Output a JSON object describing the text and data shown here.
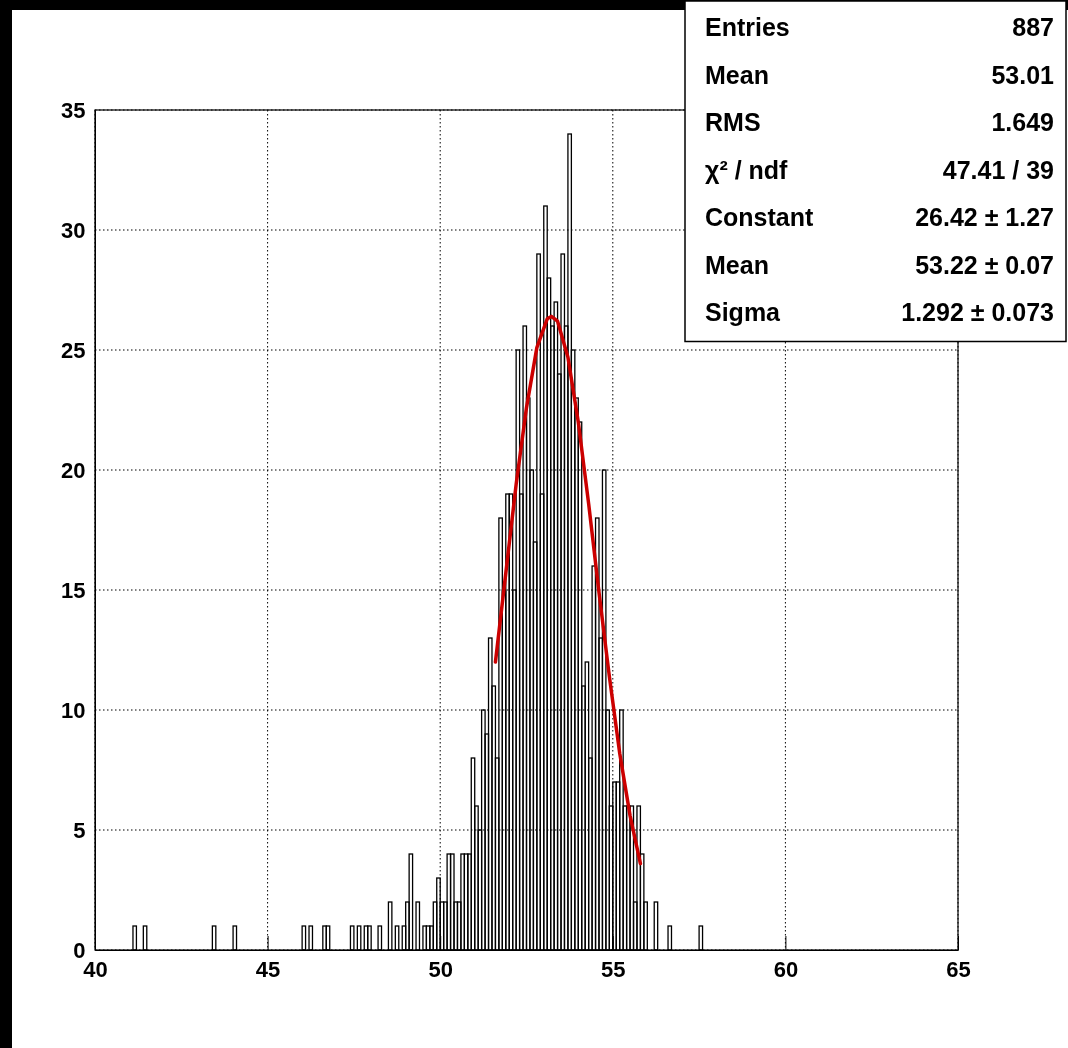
{
  "chart_data": {
    "type": "histogram",
    "xlim": [
      40,
      65
    ],
    "xticks": [
      40,
      45,
      50,
      55,
      60,
      65
    ],
    "ylim": [
      0,
      35
    ],
    "yticks": [
      0,
      5,
      10,
      15,
      20,
      25,
      30,
      35
    ],
    "grid": true,
    "annotations": [
      "Entries 887",
      "Mean 53.01",
      "RMS 1.649",
      "χ² / ndf 47.41 / 39",
      "Constant 26.42 ± 1.27",
      "Mean 53.22 ± 0.07",
      "Sigma 1.292 ± 0.073"
    ],
    "series": [
      {
        "color": "#000000",
        "bins": [
          40,
          40.1,
          40.2,
          40.3,
          40.4,
          40.5,
          40.6,
          40.7,
          40.8,
          40.9,
          41,
          41.1,
          41.2,
          41.3,
          41.4,
          41.5,
          41.6,
          41.7,
          41.8,
          41.9,
          42,
          42.1,
          42.2,
          42.3,
          42.4,
          42.5,
          42.6,
          42.7,
          42.8,
          42.9,
          43,
          43.1,
          43.2,
          43.3,
          43.4,
          43.5,
          43.6,
          43.7,
          43.8,
          43.9,
          44,
          44.1,
          44.2,
          44.3,
          44.4,
          44.5,
          44.6,
          44.7,
          44.8,
          44.9,
          45,
          45.1,
          45.2,
          45.3,
          45.4,
          45.5,
          45.6,
          45.7,
          45.8,
          45.9,
          46,
          46.1,
          46.2,
          46.3,
          46.4,
          46.5,
          46.6,
          46.7,
          46.8,
          46.9,
          47,
          47.1,
          47.2,
          47.3,
          47.4,
          47.5,
          47.6,
          47.7,
          47.8,
          47.9,
          48,
          48.1,
          48.2,
          48.3,
          48.4,
          48.5,
          48.6,
          48.7,
          48.8,
          48.9,
          49,
          49.1,
          49.2,
          49.3,
          49.4,
          49.5,
          49.6,
          49.7,
          49.8,
          49.9,
          50,
          50.1,
          50.2,
          50.3,
          50.4,
          50.5,
          50.6,
          50.7,
          50.8,
          50.9,
          51,
          51.1,
          51.2,
          51.3,
          51.4,
          51.5,
          51.6,
          51.7,
          51.8,
          51.9,
          52,
          52.1,
          52.2,
          52.3,
          52.4,
          52.5,
          52.6,
          52.7,
          52.8,
          52.9,
          53,
          53.1,
          53.2,
          53.3,
          53.4,
          53.5,
          53.6,
          53.7,
          53.8,
          53.9,
          54,
          54.1,
          54.2,
          54.3,
          54.4,
          54.5,
          54.6,
          54.7,
          54.8,
          54.9,
          55,
          55.1,
          55.2,
          55.3,
          55.4,
          55.5,
          55.6,
          55.7,
          55.8,
          55.9,
          56,
          56.1,
          56.2,
          56.3,
          56.4,
          56.5,
          56.6,
          56.7,
          56.8,
          56.9,
          57,
          57.1,
          57.2,
          57.3,
          57.4,
          57.5,
          57.6,
          57.7,
          57.8,
          57.9,
          58,
          58.1,
          58.2,
          58.3,
          58.4,
          58.5,
          58.6,
          58.7,
          58.8,
          58.9,
          59,
          59.1,
          59.2,
          59.3,
          59.4,
          59.5,
          59.6,
          59.7,
          59.8,
          59.9,
          60,
          60.1,
          60.2,
          60.3,
          60.4,
          60.5,
          60.6,
          60.7,
          60.8,
          60.9,
          61,
          61.1,
          61.2,
          61.3,
          61.4,
          61.5,
          61.6,
          61.7,
          61.8,
          61.9,
          62,
          62.1,
          62.2,
          62.3,
          62.4,
          62.5,
          62.6,
          62.7,
          62.8,
          62.9,
          63,
          63.1,
          63.2,
          63.3,
          63.4,
          63.5,
          63.6,
          63.7,
          63.8,
          63.9,
          64,
          64.1,
          64.2,
          64.3,
          64.4,
          64.5,
          64.6,
          64.7,
          64.8,
          64.9,
          65
        ],
        "values": [
          0,
          0,
          0,
          0,
          0,
          0,
          0,
          0,
          0,
          0,
          0,
          1,
          0,
          0,
          1,
          0,
          0,
          0,
          0,
          0,
          0,
          0,
          0,
          0,
          0,
          0,
          0,
          0,
          0,
          0,
          0,
          0,
          0,
          0,
          1,
          0,
          0,
          0,
          0,
          0,
          1,
          0,
          0,
          0,
          0,
          0,
          0,
          0,
          0,
          0,
          0,
          0,
          0,
          0,
          0,
          0,
          0,
          0,
          0,
          0,
          1,
          0,
          1,
          0,
          0,
          0,
          1,
          1,
          0,
          0,
          0,
          0,
          0,
          0,
          1,
          0,
          1,
          0,
          1,
          1,
          0,
          0,
          1,
          0,
          0,
          2,
          0,
          1,
          0,
          1,
          2,
          4,
          0,
          2,
          0,
          1,
          1,
          1,
          2,
          3,
          2,
          2,
          4,
          4,
          2,
          2,
          4,
          4,
          4,
          8,
          6,
          5,
          10,
          9,
          13,
          11,
          8,
          18,
          15,
          19,
          19,
          15,
          25,
          19,
          26,
          23,
          20,
          17,
          29,
          19,
          31,
          28,
          26,
          27,
          24,
          29,
          26,
          34,
          25,
          23,
          22,
          11,
          12,
          8,
          16,
          18,
          13,
          20,
          10,
          6,
          7,
          7,
          10,
          6,
          6,
          6,
          2,
          6,
          4,
          2,
          0,
          0,
          2,
          0,
          0,
          0,
          1,
          0,
          0,
          0,
          0,
          0,
          0,
          0,
          0,
          1,
          0,
          0,
          0,
          0,
          0,
          0,
          0,
          0,
          0,
          0,
          0,
          0,
          0,
          0,
          0,
          0,
          0,
          0,
          0,
          0,
          0,
          0,
          0,
          0,
          0,
          0,
          0,
          0,
          0,
          0,
          0,
          0,
          0,
          0,
          0,
          0,
          0,
          0,
          0,
          0,
          0,
          0,
          0,
          0,
          0,
          0,
          0,
          0,
          0,
          0,
          0,
          0,
          0,
          0,
          0,
          0,
          0,
          0,
          0,
          0,
          0,
          0,
          0,
          0,
          0,
          0,
          0,
          0,
          0,
          0,
          0,
          0,
          0,
          0
        ]
      },
      {
        "type": "line",
        "color": "#cc0000",
        "x": [
          51.6,
          51.9,
          52.2,
          52.5,
          52.8,
          53.1,
          53.22,
          53.4,
          53.7,
          54.0,
          54.3,
          54.6,
          54.9,
          55.2,
          55.5,
          55.8
        ],
        "values": [
          12.0,
          15.7,
          19.4,
          22.6,
          25.1,
          26.3,
          26.4,
          26.2,
          24.7,
          22.0,
          18.6,
          14.9,
          11.4,
          8.2,
          5.6,
          3.6
        ]
      }
    ]
  }
}
